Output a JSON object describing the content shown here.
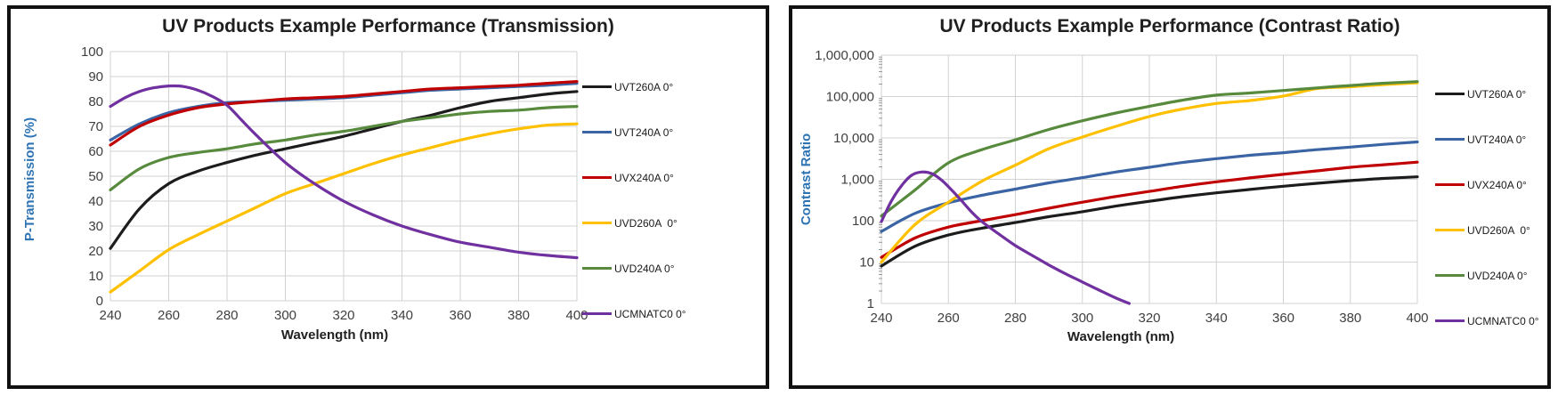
{
  "colors": {
    "series_black": "#1C1C1C",
    "series_blue": "#3A64A4",
    "series_red": "#C00000",
    "series_yellow": "#FFC000",
    "series_green": "#578A3C",
    "series_purple": "#7030A0",
    "axis_title_blue": "#2E74B5",
    "gridline": "#D2D2D2",
    "tick_text": "#3F3F3F",
    "panel_border": "#111111"
  },
  "chart_data": [
    {
      "type": "line",
      "title": "UV Products Example Performance (Transmission)",
      "xlabel": "Wavelength (nm)",
      "ylabel": "P-Transmission (%)",
      "y_scale": "linear",
      "ylim": [
        0,
        100
      ],
      "xlim": [
        240,
        400
      ],
      "grid": true,
      "legend_position": "right",
      "x_ticks": [
        240,
        260,
        280,
        300,
        320,
        340,
        360,
        380,
        400
      ],
      "x_tick_labels": [
        "240",
        "260",
        "280",
        "300",
        "320",
        "340",
        "360",
        "380",
        "400"
      ],
      "y_ticks": [
        0,
        10,
        20,
        30,
        40,
        50,
        60,
        70,
        80,
        90,
        100
      ],
      "y_tick_labels": [
        "0",
        "10",
        "20",
        "30",
        "40",
        "50",
        "60",
        "70",
        "80",
        "90",
        "100"
      ],
      "series": [
        {
          "name": "UVT260A 0°",
          "color_key": "series_black",
          "x": [
            240,
            250,
            260,
            270,
            280,
            290,
            300,
            310,
            320,
            330,
            340,
            350,
            360,
            370,
            380,
            390,
            400
          ],
          "y": [
            21,
            37,
            47,
            52,
            55.5,
            58.5,
            61,
            63.5,
            66,
            69,
            72,
            74.5,
            77.5,
            80,
            81.5,
            83,
            84
          ]
        },
        {
          "name": "UVT240A 0°",
          "color_key": "series_blue",
          "x": [
            240,
            250,
            260,
            270,
            280,
            290,
            300,
            310,
            320,
            330,
            340,
            350,
            360,
            370,
            380,
            390,
            400
          ],
          "y": [
            64.5,
            71,
            75.5,
            78,
            79.5,
            80,
            80.5,
            81,
            81.5,
            82.5,
            83.5,
            84.5,
            85,
            85.5,
            86,
            86.5,
            87.3
          ]
        },
        {
          "name": "UVX240A 0°",
          "color_key": "series_red",
          "x": [
            240,
            250,
            260,
            270,
            280,
            290,
            300,
            310,
            320,
            330,
            340,
            350,
            360,
            370,
            380,
            390,
            400
          ],
          "y": [
            62.5,
            70,
            74.5,
            77.5,
            79,
            80,
            81,
            81.5,
            82,
            83,
            84,
            85,
            85.5,
            86,
            86.5,
            87.3,
            88
          ]
        },
        {
          "name": "UVD260A  0°",
          "color_key": "series_yellow",
          "x": [
            240,
            250,
            260,
            270,
            280,
            290,
            300,
            310,
            320,
            330,
            340,
            350,
            360,
            370,
            380,
            390,
            400
          ],
          "y": [
            3.5,
            12,
            20.5,
            26.5,
            32,
            37.5,
            43,
            47,
            51,
            55,
            58.5,
            61.5,
            64.5,
            67,
            69,
            70.5,
            71
          ]
        },
        {
          "name": "UVD240A 0°",
          "color_key": "series_green",
          "x": [
            240,
            250,
            260,
            270,
            280,
            290,
            300,
            310,
            320,
            330,
            340,
            350,
            360,
            370,
            380,
            390,
            400
          ],
          "y": [
            44.5,
            53,
            57.5,
            59.5,
            61,
            63,
            64.5,
            66.5,
            68,
            70,
            72,
            73.5,
            75,
            76,
            76.5,
            77.5,
            78
          ]
        },
        {
          "name": "UCMNATC0 0°",
          "color_key": "series_purple",
          "x": [
            240,
            245,
            250,
            255,
            260,
            265,
            270,
            275,
            280,
            285,
            290,
            300,
            310,
            320,
            330,
            340,
            350,
            360,
            370,
            380,
            390,
            400
          ],
          "y": [
            78,
            81.5,
            84,
            85.5,
            86.2,
            86,
            84.5,
            82,
            78.5,
            72.5,
            66.5,
            55.5,
            47,
            40,
            34.5,
            30,
            26.5,
            23.5,
            21.5,
            19.5,
            18.2,
            17.3
          ]
        }
      ]
    },
    {
      "type": "line",
      "title": "UV Products Example Performance (Contrast Ratio)",
      "xlabel": "Wavelength (nm)",
      "ylabel": "Contrast Ratio",
      "y_scale": "log",
      "ylim": [
        1,
        1000000
      ],
      "xlim": [
        240,
        400
      ],
      "grid": true,
      "legend_position": "right",
      "x_ticks": [
        240,
        260,
        280,
        300,
        320,
        340,
        360,
        380,
        400
      ],
      "x_tick_labels": [
        "240",
        "260",
        "280",
        "300",
        "320",
        "340",
        "360",
        "380",
        "400"
      ],
      "y_ticks": [
        1,
        10,
        100,
        1000,
        10000,
        100000,
        1000000
      ],
      "y_tick_labels": [
        "1",
        "10",
        "100",
        "1,000",
        "10,000",
        "100,000",
        "1,000,000"
      ],
      "series": [
        {
          "name": "UVT260A 0°",
          "color_key": "series_black",
          "x": [
            240,
            250,
            260,
            270,
            280,
            290,
            300,
            310,
            320,
            330,
            340,
            350,
            360,
            370,
            380,
            390,
            400
          ],
          "y": [
            8,
            24,
            45,
            66,
            90,
            125,
            165,
            225,
            295,
            380,
            470,
            570,
            680,
            800,
            930,
            1050,
            1150
          ]
        },
        {
          "name": "UVT240A 0°",
          "color_key": "series_blue",
          "x": [
            240,
            250,
            260,
            270,
            280,
            290,
            300,
            310,
            320,
            330,
            340,
            350,
            360,
            370,
            380,
            390,
            400
          ],
          "y": [
            55,
            150,
            270,
            410,
            580,
            820,
            1100,
            1500,
            1950,
            2550,
            3150,
            3800,
            4400,
            5200,
            6000,
            7000,
            8000
          ]
        },
        {
          "name": "UVX240A 0°",
          "color_key": "series_red",
          "x": [
            240,
            250,
            260,
            270,
            280,
            290,
            300,
            310,
            320,
            330,
            340,
            350,
            360,
            370,
            380,
            390,
            400
          ],
          "y": [
            13,
            38,
            70,
            100,
            140,
            200,
            280,
            385,
            510,
            680,
            870,
            1080,
            1320,
            1600,
            1950,
            2250,
            2600
          ]
        },
        {
          "name": "UVD260A  0°",
          "color_key": "series_yellow",
          "x": [
            240,
            250,
            260,
            270,
            280,
            290,
            300,
            310,
            320,
            330,
            340,
            350,
            360,
            370,
            380,
            390,
            400
          ],
          "y": [
            10,
            80,
            280,
            900,
            2200,
            5500,
            10500,
            19000,
            33000,
            50000,
            68000,
            80000,
            103000,
            155000,
            172000,
            195000,
            215000
          ]
        },
        {
          "name": "UVD240A 0°",
          "color_key": "series_green",
          "x": [
            240,
            250,
            260,
            270,
            280,
            290,
            300,
            310,
            320,
            330,
            340,
            350,
            360,
            370,
            380,
            390,
            400
          ],
          "y": [
            130,
            550,
            2500,
            5200,
            9000,
            16000,
            26000,
            40000,
            58000,
            82000,
            108000,
            122000,
            140000,
            162000,
            185000,
            210000,
            230000
          ]
        },
        {
          "name": "UCMNATC0 0°",
          "color_key": "series_purple",
          "x": [
            240,
            243,
            246,
            249,
            252,
            255,
            258,
            261,
            264,
            267,
            270,
            275,
            280,
            285,
            290,
            295,
            300,
            305,
            310,
            314
          ],
          "y": [
            95,
            300,
            700,
            1250,
            1500,
            1380,
            950,
            550,
            300,
            160,
            95,
            48,
            25,
            14.5,
            8.5,
            5.2,
            3.3,
            2.1,
            1.35,
            1.0
          ]
        }
      ]
    }
  ]
}
